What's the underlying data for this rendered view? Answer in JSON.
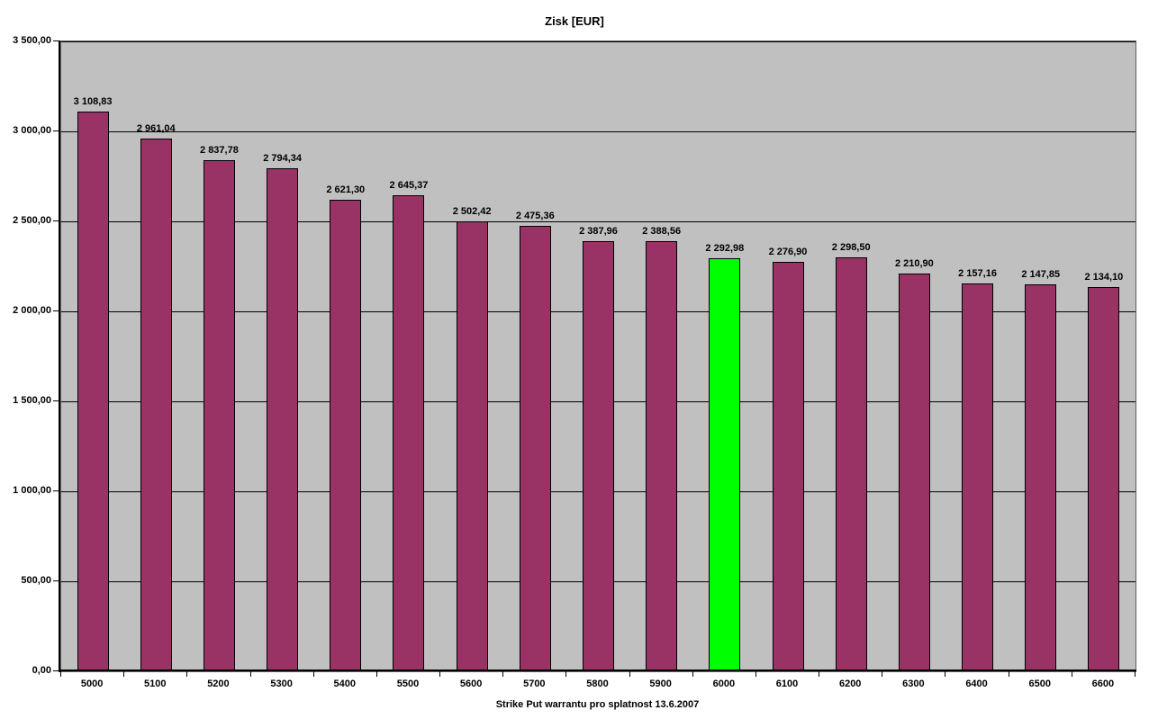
{
  "chart_data": {
    "type": "bar",
    "title": "Zisk [EUR]",
    "xlabel": "Strike Put warrantu pro splatnost 13.6.2007",
    "ylabel": "",
    "categories": [
      "5000",
      "5100",
      "5200",
      "5300",
      "5400",
      "5500",
      "5600",
      "5700",
      "5800",
      "5900",
      "6000",
      "6100",
      "6200",
      "6300",
      "6400",
      "6500",
      "6600"
    ],
    "values": [
      3108.83,
      2961.04,
      2837.78,
      2794.34,
      2621.3,
      2645.37,
      2502.42,
      2475.36,
      2387.96,
      2388.56,
      2292.98,
      2276.9,
      2298.5,
      2210.9,
      2157.16,
      2147.85,
      2134.1
    ],
    "value_labels": [
      "3 108,83",
      "2 961,04",
      "2 837,78",
      "2 794,34",
      "2 621,30",
      "2 645,37",
      "2 502,42",
      "2 475,36",
      "2 387,96",
      "2 388,56",
      "2 292,98",
      "2 276,90",
      "2 298,50",
      "2 210,90",
      "2 157,16",
      "2 147,85",
      "2 134,10"
    ],
    "ylim": [
      0,
      3500
    ],
    "ytick_step": 500,
    "ytick_labels": [
      "0,00",
      "500,00",
      "1 000,00",
      "1 500,00",
      "2 000,00",
      "2 500,00",
      "3 000,00",
      "3 500,00"
    ],
    "grid": true,
    "legend": "none",
    "colors": {
      "bar": "#993366",
      "highlight": "#00FF00",
      "bar_border": "#000000",
      "plot_bg": "#C0C0C0",
      "outer_bg": "#FFFFFF",
      "gridline": "#000000",
      "text": "#000000"
    },
    "highlight_index": 10
  }
}
